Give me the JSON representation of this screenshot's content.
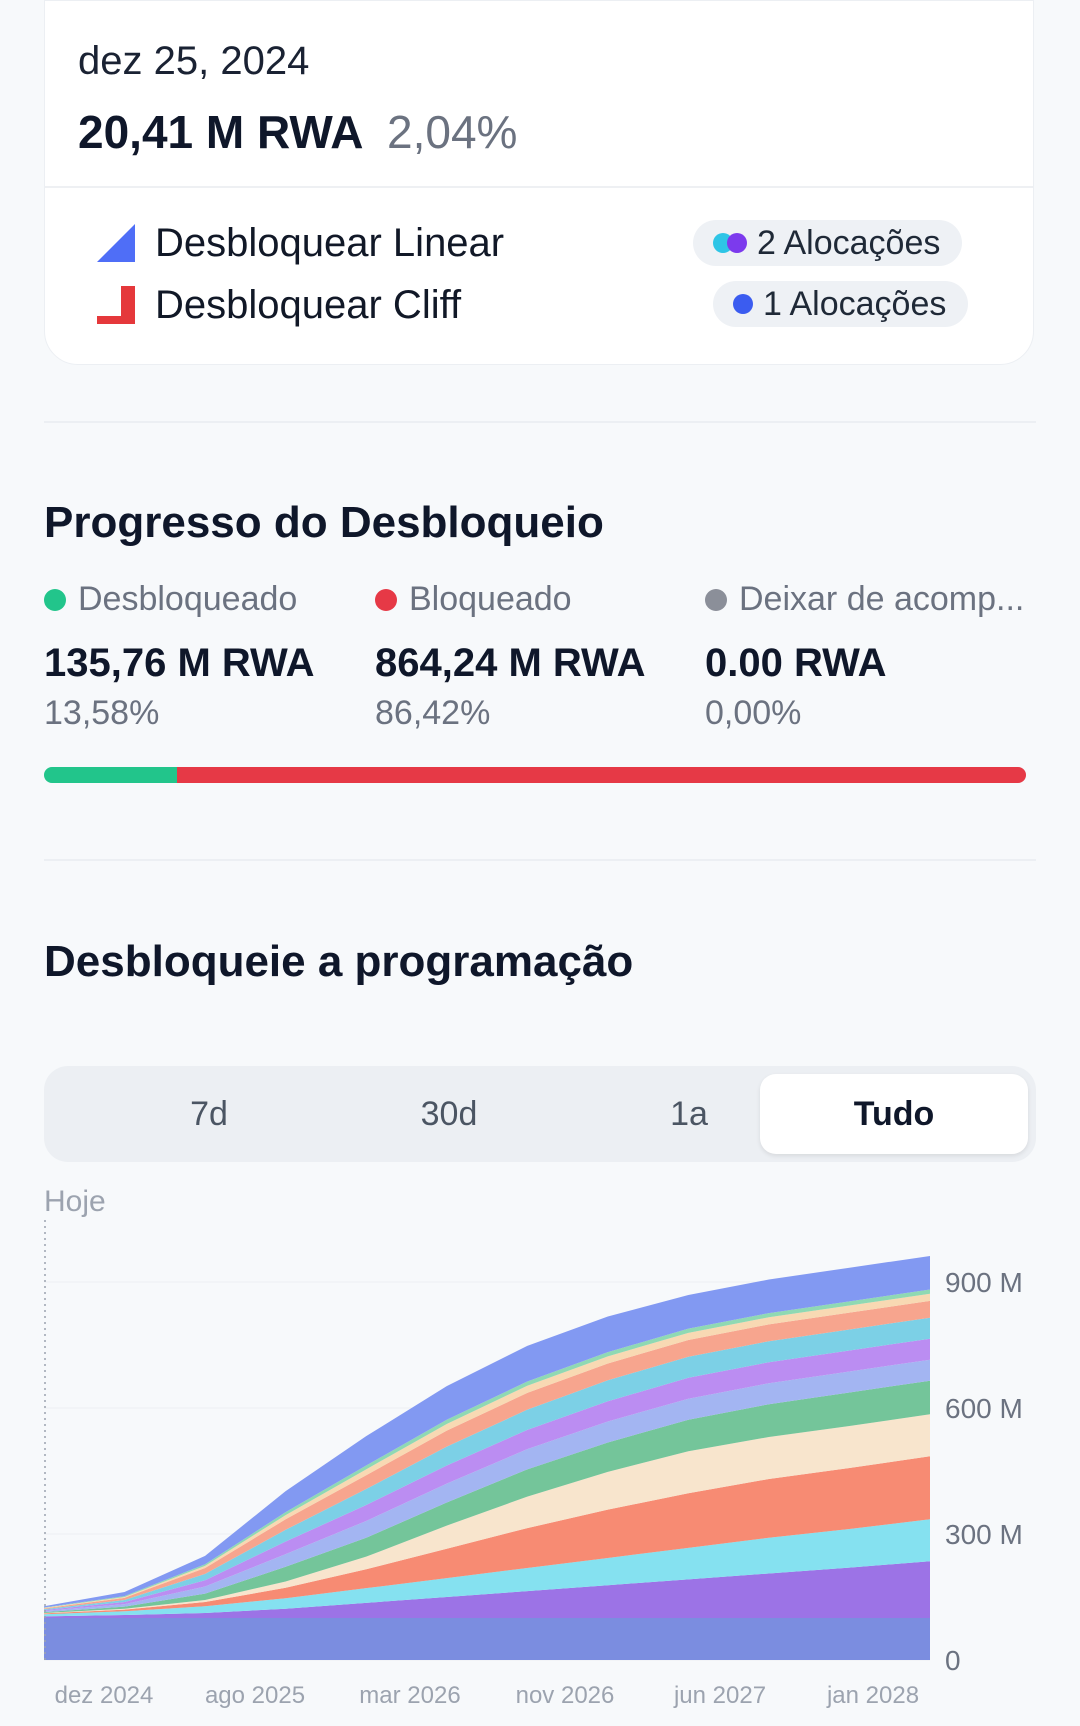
{
  "summary": {
    "date": "dez 25, 2024",
    "amount": "20,41 M RWA",
    "percent": "2,04%",
    "legend": [
      {
        "label": "Desbloquear Linear",
        "icon": "linear-unlock-icon",
        "color": "#4f6ef7",
        "pill": "2 Alocações",
        "dots": [
          "#2ec5e6",
          "#7c3aed"
        ]
      },
      {
        "label": "Desbloquear Cliff",
        "icon": "cliff-unlock-icon",
        "color": "#e5383b",
        "pill": "1 Alocações",
        "dots": [
          "#3b5cf0"
        ]
      }
    ]
  },
  "progress": {
    "title": "Progresso do Desbloqueio",
    "items": [
      {
        "label": "Desbloqueado",
        "value": "135,76 M RWA",
        "percent": "13,58%",
        "color": "#22c58b"
      },
      {
        "label": "Bloqueado",
        "value": "864,24 M RWA",
        "percent": "86,42%",
        "color": "#e63946"
      },
      {
        "label": "Deixar de acomp...",
        "value": "0.00 RWA",
        "percent": "0,00%",
        "color": "#8b8f99"
      }
    ],
    "fractions": [
      0.1358,
      0.8642,
      0.0
    ]
  },
  "schedule": {
    "title": "Desbloqueie a programação",
    "tabs": [
      "7d",
      "30d",
      "1a",
      "Tudo"
    ],
    "active_tab": "Tudo",
    "today_label": "Hoje"
  },
  "chart_data": {
    "type": "area",
    "stacked": true,
    "x": [
      "2024-12",
      "2025-02",
      "2025-04",
      "2025-08",
      "2025-12",
      "2026-04",
      "2026-08",
      "2026-12",
      "2027-04",
      "2027-08",
      "2027-12",
      "2028-04"
    ],
    "x_tick_labels": [
      "dez 2024",
      "ago 2025",
      "mar 2026",
      "nov 2026",
      "jun 2027",
      "jan 2028"
    ],
    "y_tick_labels": [
      "0",
      "300 M",
      "600 M",
      "900 M"
    ],
    "ylim": [
      0,
      1000
    ],
    "grid": true,
    "legend": "none",
    "series": [
      {
        "color": "#7b8de0",
        "values": [
          100,
          100,
          100,
          100,
          100,
          100,
          100,
          100,
          100,
          100,
          100,
          100
        ]
      },
      {
        "color": "#9c73e6",
        "values": [
          4,
          7,
          12,
          22,
          36,
          50,
          64,
          78,
          92,
          106,
          120,
          135
        ]
      },
      {
        "color": "#85e1f0",
        "values": [
          5,
          9,
          16,
          25,
          35,
          45,
          55,
          65,
          75,
          85,
          92,
          100
        ]
      },
      {
        "color": "#f78b73",
        "values": [
          2,
          4,
          10,
          25,
          45,
          70,
          95,
          115,
          130,
          140,
          145,
          150
        ]
      },
      {
        "color": "#f8e5cd",
        "values": [
          1,
          2,
          5,
          15,
          30,
          55,
          75,
          90,
          100,
          100,
          100,
          100
        ]
      },
      {
        "color": "#74c59a",
        "values": [
          2,
          5,
          15,
          35,
          45,
          55,
          65,
          70,
          75,
          78,
          80,
          80
        ]
      },
      {
        "color": "#a3b5f2",
        "values": [
          3,
          6,
          17,
          30,
          40,
          45,
          48,
          50,
          50,
          50,
          50,
          50
        ]
      },
      {
        "color": "#bb8df2",
        "values": [
          2,
          5,
          15,
          30,
          38,
          43,
          46,
          48,
          50,
          50,
          50,
          50
        ]
      },
      {
        "color": "#7cd0e6",
        "values": [
          2,
          5,
          15,
          28,
          38,
          45,
          48,
          50,
          50,
          50,
          50,
          50
        ]
      },
      {
        "color": "#f7a58e",
        "values": [
          2,
          5,
          14,
          25,
          33,
          38,
          40,
          40,
          40,
          40,
          40,
          40
        ]
      },
      {
        "color": "#f8d9b3",
        "values": [
          1,
          2,
          5,
          10,
          14,
          16,
          17,
          17,
          17,
          17,
          17,
          17
        ]
      },
      {
        "color": "#8fd9b3",
        "values": [
          1,
          2,
          4,
          7,
          9,
          10,
          10,
          10,
          10,
          10,
          10,
          10
        ]
      },
      {
        "color": "#8299f2",
        "values": [
          3,
          10,
          20,
          50,
          70,
          80,
          85,
          85,
          80,
          80,
          80,
          80
        ]
      }
    ]
  }
}
